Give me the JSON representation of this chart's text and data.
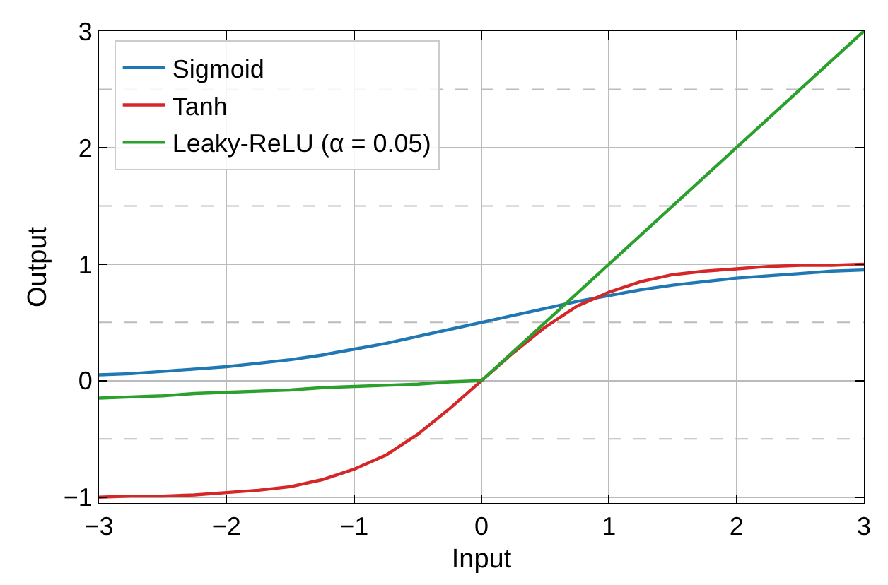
{
  "chart_data": {
    "type": "line",
    "xlabel": "Input",
    "ylabel": "Output",
    "x": [
      -3,
      -2.75,
      -2.5,
      -2.25,
      -2,
      -1.75,
      -1.5,
      -1.25,
      -1,
      -0.75,
      -0.5,
      -0.25,
      0,
      0.25,
      0.5,
      0.75,
      1,
      1.25,
      1.5,
      1.75,
      2,
      2.25,
      2.5,
      2.75,
      3
    ],
    "series": [
      {
        "name": "Sigmoid",
        "color": "#1f77b4",
        "values": [
          0.05,
          0.06,
          0.08,
          0.1,
          0.12,
          0.15,
          0.18,
          0.22,
          0.27,
          0.32,
          0.38,
          0.44,
          0.5,
          0.56,
          0.62,
          0.68,
          0.73,
          0.78,
          0.82,
          0.85,
          0.88,
          0.9,
          0.92,
          0.94,
          0.95
        ]
      },
      {
        "name": "Tanh",
        "color": "#d62728",
        "values": [
          -1,
          -0.99,
          -0.99,
          -0.98,
          -0.96,
          -0.94,
          -0.91,
          -0.85,
          -0.76,
          -0.64,
          -0.46,
          -0.24,
          0,
          0.24,
          0.46,
          0.64,
          0.76,
          0.85,
          0.91,
          0.94,
          0.96,
          0.98,
          0.99,
          0.99,
          1
        ]
      },
      {
        "name": "Leaky-ReLU (α = 0.05)",
        "color": "#2ca02c",
        "values": [
          -0.15,
          -0.14,
          -0.13,
          -0.11,
          -0.1,
          -0.09,
          -0.08,
          -0.06,
          -0.05,
          -0.04,
          -0.03,
          -0.01,
          0,
          0.25,
          0.5,
          0.75,
          1,
          1.25,
          1.5,
          1.75,
          2,
          2.25,
          2.5,
          2.75,
          3
        ]
      }
    ],
    "xlim": [
      -3,
      3
    ],
    "xticks": [
      {
        "value": -3,
        "label": "−3"
      },
      {
        "value": -2,
        "label": "−2"
      },
      {
        "value": -1,
        "label": "−1"
      },
      0,
      1,
      2,
      3
    ],
    "ylim": [
      -1.05,
      3
    ],
    "yticks": [
      {
        "value": -1,
        "label": "−1"
      },
      {
        "value": -0.5,
        "label": null
      },
      0,
      {
        "value": 0.5,
        "label": null
      },
      1,
      {
        "value": 1.5,
        "label": null
      },
      2,
      {
        "value": 2.5,
        "label": null
      },
      3
    ],
    "grid": true,
    "legend": "top left",
    "marker": "none",
    "line_style": "solid"
  }
}
